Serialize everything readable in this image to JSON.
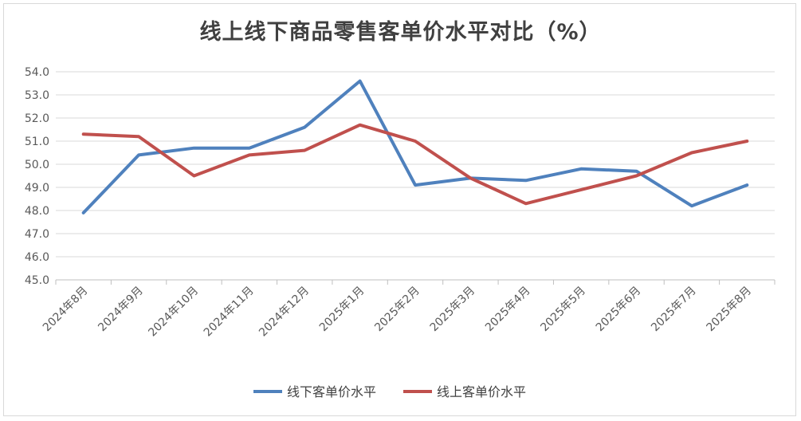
{
  "chart_data": {
    "type": "line",
    "title": "线上线下商品零售客单价水平对比（%）",
    "xlabel": "",
    "ylabel": "",
    "categories": [
      "2024年8月",
      "2024年9月",
      "2024年10月",
      "2024年11月",
      "2024年12月",
      "2025年1月",
      "2025年2月",
      "2025年3月",
      "2025年4月",
      "2025年5月",
      "2025年6月",
      "2025年7月",
      "2025年8月"
    ],
    "ylim": [
      45.0,
      54.0
    ],
    "yticks": [
      "45.0",
      "46.0",
      "47.0",
      "48.0",
      "49.0",
      "50.0",
      "51.0",
      "52.0",
      "53.0",
      "54.0"
    ],
    "grid": true,
    "legend_position": "bottom",
    "series": [
      {
        "name": "线下客单价水平",
        "color": "#4f81bd",
        "values": [
          47.9,
          50.4,
          50.7,
          50.7,
          51.6,
          53.6,
          49.1,
          49.4,
          49.3,
          49.8,
          49.7,
          48.2,
          49.1
        ]
      },
      {
        "name": "线上客单价水平",
        "color": "#c0504d",
        "values": [
          51.3,
          51.2,
          49.5,
          50.4,
          50.6,
          51.7,
          51.0,
          49.4,
          48.3,
          48.9,
          49.5,
          50.5,
          51.0
        ]
      }
    ]
  }
}
